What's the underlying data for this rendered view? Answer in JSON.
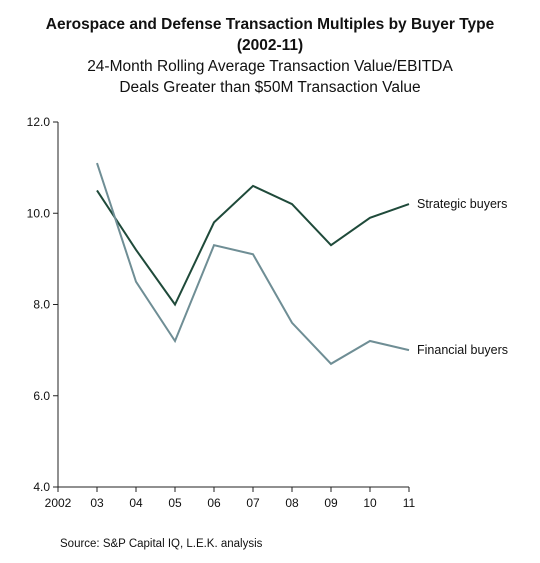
{
  "chart_data": {
    "type": "line",
    "title": "Aerospace and Defense Transaction Multiples by Buyer Type",
    "title_line2": "(2002-11)",
    "subtitle": "24-Month Rolling Average Transaction Value/EBITDA",
    "subtitle_line2": "Deals Greater than $50M Transaction Value",
    "xlabel": "",
    "ylabel": "",
    "categories": [
      "2002",
      "03",
      "04",
      "05",
      "06",
      "07",
      "08",
      "09",
      "10",
      "11"
    ],
    "yticks": [
      "4.0",
      "6.0",
      "8.0",
      "10.0",
      "12.0"
    ],
    "ylim": [
      4.0,
      12.0
    ],
    "grid": false,
    "series": [
      {
        "name": "Strategic buyers",
        "color": "#1f4a3a",
        "x": [
          "03",
          "04",
          "05",
          "06",
          "07",
          "08",
          "09",
          "10",
          "11"
        ],
        "values": [
          10.5,
          9.2,
          8.0,
          9.8,
          10.6,
          10.2,
          9.3,
          9.9,
          10.2
        ]
      },
      {
        "name": "Financial buyers",
        "color": "#6f8e95",
        "x": [
          "03",
          "04",
          "05",
          "06",
          "07",
          "08",
          "09",
          "10",
          "11"
        ],
        "values": [
          11.1,
          8.5,
          7.2,
          9.3,
          9.1,
          7.6,
          6.7,
          7.2,
          7.0
        ]
      }
    ],
    "source": "Source:  S&P Capital IQ, L.E.K. analysis"
  }
}
